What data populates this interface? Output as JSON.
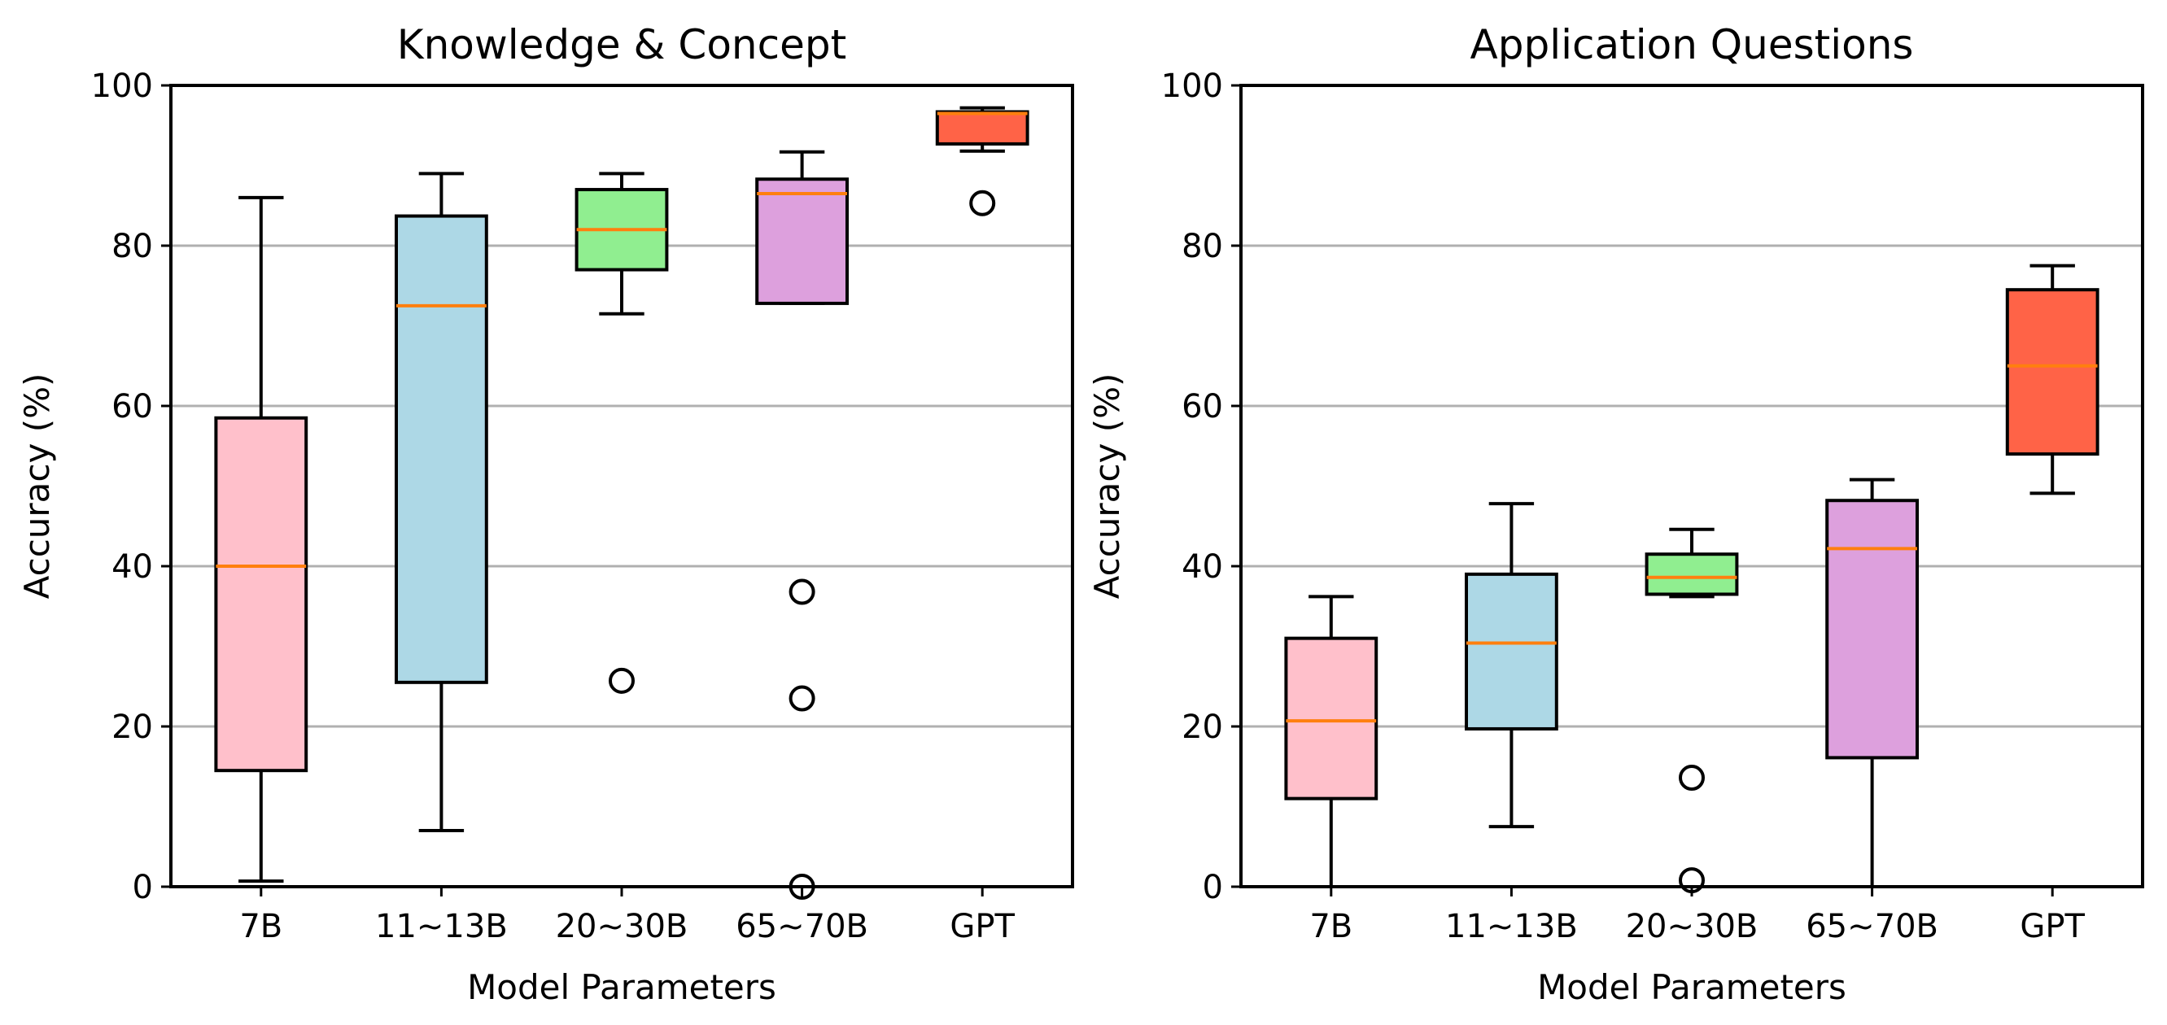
{
  "chart_data": [
    {
      "type": "box",
      "title": "Knowledge & Concept",
      "xlabel": "Model Parameters",
      "ylabel": "Accuracy (%)",
      "ylim": [
        0,
        100
      ],
      "yticks": [
        0,
        20,
        40,
        60,
        80,
        100
      ],
      "ytick_labels": [
        "0",
        "20",
        "40",
        "60",
        "80",
        "100"
      ],
      "grid": "horizontal",
      "categories": [
        "7B",
        "11~13B",
        "20~30B",
        "65~70B",
        "GPT"
      ],
      "boxes": [
        {
          "category": "7B",
          "whisker_low": 0.7,
          "q1": 14.5,
          "median": 40,
          "q3": 58.5,
          "whisker_high": 86,
          "outliers": [],
          "color": "#FFC0CB"
        },
        {
          "category": "11~13B",
          "whisker_low": 7,
          "q1": 25.5,
          "median": 72.5,
          "q3": 83.7,
          "whisker_high": 89,
          "outliers": [],
          "color": "#ADD8E6"
        },
        {
          "category": "20~30B",
          "whisker_low": 71.5,
          "q1": 77,
          "median": 82,
          "q3": 87,
          "whisker_high": 89,
          "outliers": [
            25.7
          ],
          "color": "#90EE90"
        },
        {
          "category": "65~70B",
          "whisker_low": 72.8,
          "q1": 72.8,
          "median": 86.5,
          "q3": 88.3,
          "whisker_high": 91.7,
          "outliers": [
            36.8,
            23.5,
            0
          ],
          "color": "#DDA0DD"
        },
        {
          "category": "GPT",
          "whisker_low": 91.8,
          "q1": 92.7,
          "median": 96.5,
          "q3": 96.7,
          "whisker_high": 97.2,
          "outliers": [
            85.3
          ],
          "color": "#FF6347"
        }
      ]
    },
    {
      "type": "box",
      "title": "Application Questions",
      "xlabel": "Model Parameters",
      "ylabel": "Accuracy (%)",
      "ylim": [
        0,
        100
      ],
      "yticks": [
        0,
        20,
        40,
        60,
        80,
        100
      ],
      "ytick_labels": [
        "0",
        "20",
        "40",
        "60",
        "80",
        "100"
      ],
      "grid": "horizontal",
      "categories": [
        "7B",
        "11~13B",
        "20~30B",
        "65~70B",
        "GPT"
      ],
      "boxes": [
        {
          "category": "7B",
          "whisker_low": 0,
          "q1": 11,
          "median": 20.7,
          "q3": 31,
          "whisker_high": 36.2,
          "outliers": [],
          "color": "#FFC0CB"
        },
        {
          "category": "11~13B",
          "whisker_low": 7.5,
          "q1": 19.7,
          "median": 30.4,
          "q3": 39,
          "whisker_high": 47.8,
          "outliers": [],
          "color": "#ADD8E6"
        },
        {
          "category": "20~30B",
          "whisker_low": 36.2,
          "q1": 36.5,
          "median": 38.6,
          "q3": 41.5,
          "whisker_high": 44.6,
          "outliers": [
            13.6,
            0.8
          ],
          "color": "#90EE90"
        },
        {
          "category": "65~70B",
          "whisker_low": 0,
          "q1": 16.1,
          "median": 42.2,
          "q3": 48.2,
          "whisker_high": 50.8,
          "outliers": [],
          "color": "#DDA0DD"
        },
        {
          "category": "GPT",
          "whisker_low": 49.1,
          "q1": 54,
          "median": 65,
          "q3": 74.5,
          "whisker_high": 77.5,
          "outliers": [],
          "color": "#FF6347"
        }
      ]
    }
  ],
  "colors": {
    "median": "#FF7F0E",
    "grid": "#B0B0B0",
    "frame": "#000000"
  }
}
